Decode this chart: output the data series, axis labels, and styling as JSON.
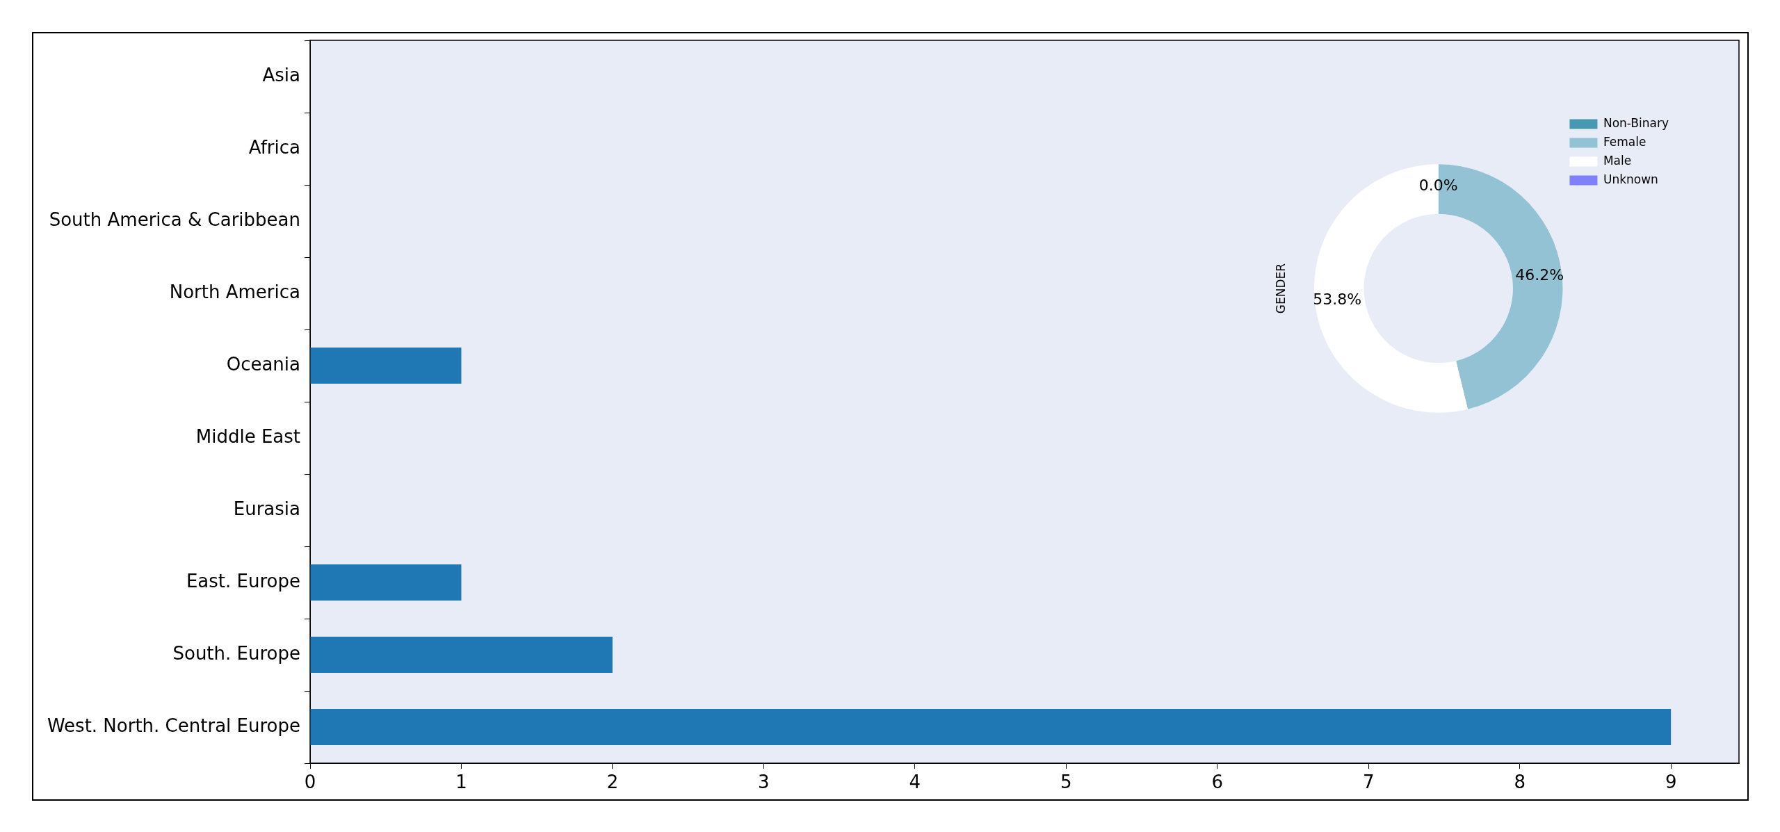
{
  "chart_data": [
    {
      "type": "bar",
      "orientation": "horizontal",
      "categories": [
        "Asia",
        "Africa",
        "South America & Caribbean",
        "North America",
        "Oceania",
        "Middle East",
        "Eurasia",
        "East. Europe",
        "South. Europe",
        "West. North. Central Europe"
      ],
      "values": [
        0,
        0,
        0,
        0,
        1,
        0,
        0,
        1,
        2,
        9
      ],
      "color": "#1f77b4",
      "xlim": [
        0,
        9.45
      ],
      "xticks": [
        0,
        1,
        2,
        3,
        4,
        5,
        6,
        7,
        8,
        9
      ],
      "grid": false,
      "legend": false
    },
    {
      "type": "donut",
      "ylabel": "GENDER",
      "categories": [
        "Non-Binary",
        "Female",
        "Male",
        "Unknown"
      ],
      "values": [
        0,
        46.2,
        53.8,
        0
      ],
      "colors": [
        "#4699b0",
        "#93c2d4",
        "#ffffff",
        "#8080ff"
      ],
      "value_labels": [
        "0.0%",
        "46.2%",
        "53.8%",
        null
      ],
      "legend": "top right"
    }
  ]
}
